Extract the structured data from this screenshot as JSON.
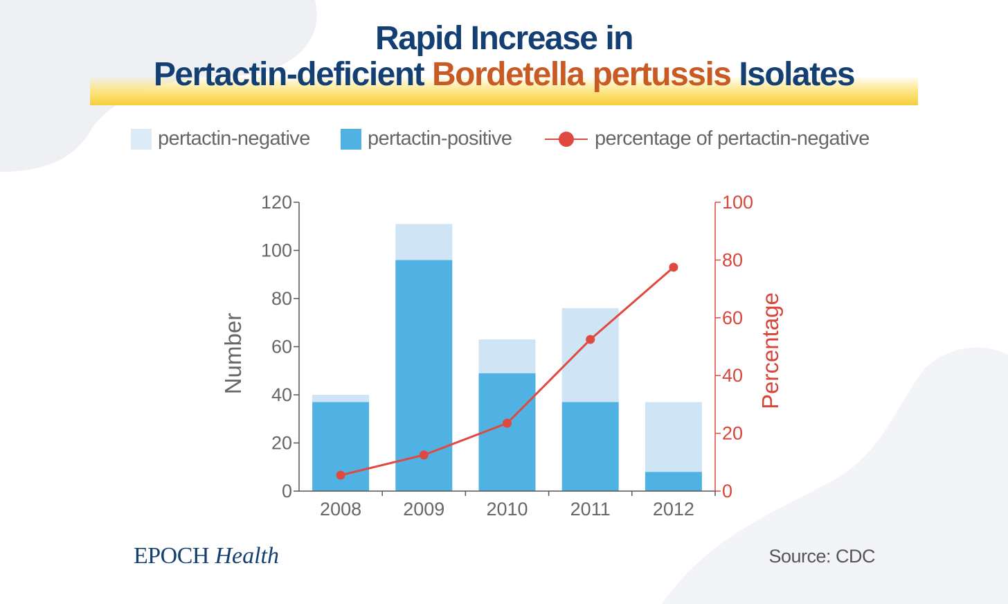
{
  "title": {
    "line1": "Rapid Increase in",
    "line2_part1": "Pertactin-deficient ",
    "line2_accent": "Bordetella pertussis",
    "line2_part2": " Isolates"
  },
  "legend": {
    "negative": "pertactin-negative",
    "positive": "pertactin-positive",
    "percentage": "percentage of pertactin-negative"
  },
  "colors": {
    "negative": "#cfe4f5",
    "positive": "#4fb2e3",
    "percentage": "#e0493f",
    "title": "#143f72",
    "title_accent": "#c85a24"
  },
  "chart_data": {
    "type": "bar",
    "stacked": true,
    "categories": [
      "2008",
      "2009",
      "2010",
      "2011",
      "2012"
    ],
    "series": [
      {
        "name": "pertactin-positive",
        "values": [
          37,
          96,
          49,
          37,
          8
        ]
      },
      {
        "name": "pertactin-negative",
        "values": [
          3,
          15,
          14,
          39,
          29
        ]
      }
    ],
    "line_series": {
      "name": "percentage of pertactin-negative",
      "axis": "right",
      "values": [
        5.5,
        12.5,
        23.5,
        52.5,
        77.5
      ]
    },
    "ylabel": "Number",
    "ylabel_right": "Percentage",
    "ylim": [
      0,
      120
    ],
    "ylim_right": [
      0,
      100
    ],
    "yticks": [
      0,
      20,
      40,
      60,
      80,
      100,
      120
    ],
    "yticks_right": [
      0,
      20,
      40,
      60,
      80,
      100
    ],
    "legend_position": "top",
    "grid": false
  },
  "brand": {
    "part1": "EPOCH",
    "part2": "Health"
  },
  "source": "Source: CDC"
}
